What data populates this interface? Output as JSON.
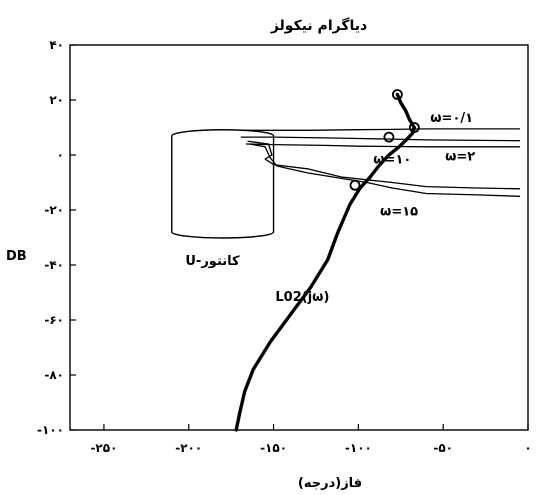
{
  "chart_data": {
    "type": "line",
    "title": "دیاگرام نیکولز",
    "xlabel": "فاز(درجه)",
    "ylabel": "DB",
    "xlim": [
      -270,
      0
    ],
    "ylim": [
      -100,
      40
    ],
    "grid": false,
    "x_ticks": [
      {
        "value": -250,
        "label": "-۲۵۰"
      },
      {
        "value": -200,
        "label": "-۲۰۰"
      },
      {
        "value": -150,
        "label": "-۱۵۰"
      },
      {
        "value": -100,
        "label": "-۱۰۰"
      },
      {
        "value": -50,
        "label": "-۵۰"
      },
      {
        "value": 0,
        "label": "۰"
      }
    ],
    "y_ticks": [
      {
        "value": 40,
        "label": "۴۰"
      },
      {
        "value": 20,
        "label": "۲۰"
      },
      {
        "value": 0,
        "label": "۰"
      },
      {
        "value": -20,
        "label": "-۲۰"
      },
      {
        "value": -40,
        "label": "-۴۰"
      },
      {
        "value": -60,
        "label": "-۶۰"
      },
      {
        "value": -80,
        "label": "-۸۰"
      },
      {
        "value": -100,
        "label": "-۱۰۰"
      }
    ],
    "series": [
      {
        "name": "L02(jω)",
        "x": [
          -77,
          -75,
          -72,
          -70,
          -67,
          -68,
          -71,
          -76,
          -82,
          -88,
          -93,
          -99,
          -105,
          -112,
          -118,
          -128,
          -140,
          -152,
          -162,
          -167,
          -170,
          -172
        ],
        "y": [
          22,
          19,
          16,
          13,
          10,
          8,
          6,
          3,
          0,
          -4,
          -8,
          -12,
          -18,
          -28,
          -38,
          -48,
          -58,
          -68,
          -78,
          -86,
          -94,
          -100
        ]
      },
      {
        "name": "ω=۰/۱ bound",
        "x": [
          -167,
          -130,
          -100,
          -80,
          -60,
          -40,
          -5
        ],
        "y": [
          9,
          9,
          9.2,
          9.3,
          9.5,
          9.5,
          9.5
        ]
      },
      {
        "name": "ω=۲ bound",
        "x": [
          -169,
          -150,
          -120,
          -100,
          -80,
          -60,
          -5
        ],
        "y": [
          6.5,
          6.5,
          6.2,
          6,
          5.8,
          5.5,
          5.2
        ]
      },
      {
        "name": "ω=۱۰ bound",
        "x": [
          -166,
          -150,
          -120,
          -100,
          -80,
          -60,
          -5
        ],
        "y": [
          4,
          3.8,
          3.5,
          3.2,
          3.1,
          3,
          3
        ]
      },
      {
        "name": "ω=۱۵ bound",
        "x": [
          -165,
          -153,
          -151,
          -155,
          -150,
          -130,
          -110,
          -95,
          -80,
          -60,
          -30,
          -5
        ],
        "y": [
          5,
          4,
          0,
          -1.5,
          -3.5,
          -5,
          -8,
          -9,
          -10,
          -11.5,
          -12,
          -12.3
        ]
      },
      {
        "name": "ω=۱۵ inner bound",
        "x": [
          -164,
          -155,
          -152,
          -148,
          -130,
          -110,
          -95,
          -80,
          -60,
          -30,
          -5
        ],
        "y": [
          4,
          3,
          -1,
          -4,
          -6.5,
          -8.5,
          -10,
          -12,
          -14,
          -14.5,
          -15
        ]
      }
    ],
    "markers": [
      {
        "x": -77,
        "y": 22
      },
      {
        "x": -67,
        "y": 10
      },
      {
        "x": -82,
        "y": 6.5
      },
      {
        "x": -102,
        "y": -11
      }
    ],
    "u_contour": {
      "x": [
        -210,
        -150
      ],
      "y": [
        -28,
        7
      ]
    },
    "annotations": [
      {
        "text": "ω=۰/۱",
        "x": -45,
        "y": 12
      },
      {
        "text": "ω=۲",
        "x": -40,
        "y": -2
      },
      {
        "text": "ω=۱۰",
        "x": -80,
        "y": -3
      },
      {
        "text": "ω=۱۵",
        "x": -76,
        "y": -22
      },
      {
        "text": "U-کانتور",
        "x": -186,
        "y": -40
      },
      {
        "text": "L02(jω)",
        "x": -133,
        "y": -53
      }
    ]
  }
}
